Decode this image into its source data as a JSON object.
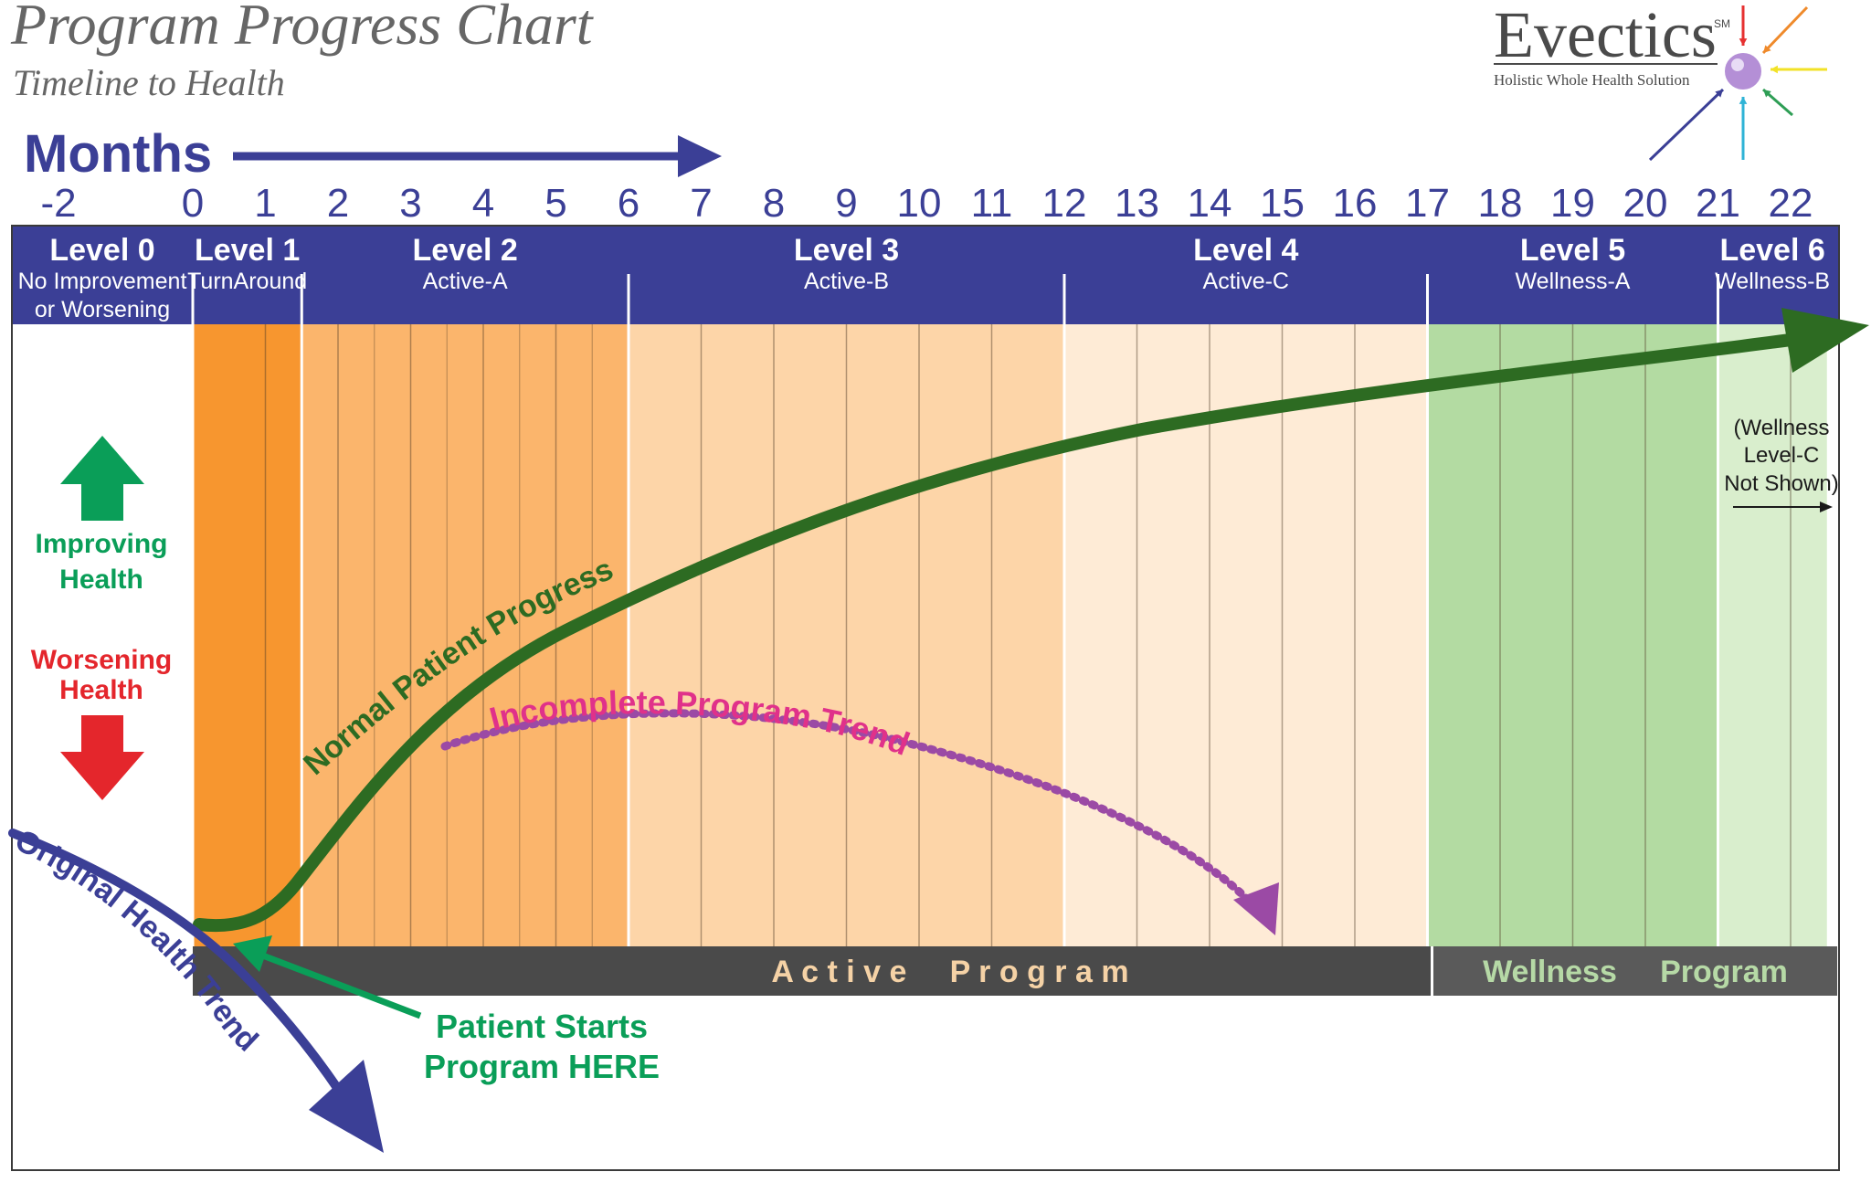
{
  "title": "Program Progress Chart",
  "subtitle": "Timeline to Health",
  "logo": {
    "name": "Evectics",
    "mark": "SM",
    "tagline": "Holistic Whole Health Solution",
    "arrow_colors": [
      "#e63131",
      "#ef8a2b",
      "#f2e227",
      "#2e9e55",
      "#2fb3d6",
      "#3b3f96"
    ]
  },
  "months_label": "Months",
  "month_ticks": [
    "-2",
    "0",
    "1",
    "2",
    "3",
    "4",
    "5",
    "6",
    "7",
    "8",
    "9",
    "10",
    "11",
    "12",
    "13",
    "14",
    "15",
    "16",
    "17",
    "18",
    "19",
    "20",
    "21",
    "22"
  ],
  "levels": [
    {
      "name": "Level 0",
      "sub": [
        "No Improvement",
        "or Worsening"
      ],
      "start": -2.5,
      "end": 0,
      "color": "#ffffff"
    },
    {
      "name": "Level 1",
      "sub": [
        "TurnAround"
      ],
      "start": 0,
      "end": 1.5,
      "color": "#f7962f"
    },
    {
      "name": "Level 2",
      "sub": [
        "Active-A"
      ],
      "start": 1.5,
      "end": 6,
      "color": "#fbb56c"
    },
    {
      "name": "Level 3",
      "sub": [
        "Active-B"
      ],
      "start": 6,
      "end": 12,
      "color": "#fdd5a8"
    },
    {
      "name": "Level 4",
      "sub": [
        "Active-C"
      ],
      "start": 12,
      "end": 17,
      "color": "#feebd6"
    },
    {
      "name": "Level 5",
      "sub": [
        "Wellness-A"
      ],
      "start": 17,
      "end": 21,
      "color": "#b3dba2"
    },
    {
      "name": "Level 6",
      "sub": [
        "Wellness-B"
      ],
      "start": 21,
      "end": 22.5,
      "color": "#d9eecd"
    }
  ],
  "bottom_bars": {
    "active": "A c t i v e     P r o g r a m",
    "wellness": "Wellness     Program"
  },
  "legend": {
    "improving": [
      "Improving",
      "Health"
    ],
    "worsening": [
      "Worsening",
      "Health"
    ],
    "improving_color": "#0a9e58",
    "worsening_color": "#e4262c"
  },
  "note": [
    "(Wellness",
    "Level-C",
    "Not Shown)"
  ],
  "curves": {
    "normal": "Normal Patient Progress",
    "incomplete": "Incomplete Program Trend",
    "original": "Original Health Trend"
  },
  "start_label": [
    "Patient Starts",
    "Program HERE"
  ],
  "colors": {
    "navy": "#3b3f96",
    "dark_green": "#2d6b22",
    "magenta": "#e0318a",
    "purple_dots": "#9b4aa5",
    "start_green": "#0a9e58",
    "bar_dark": "#4a4a4a",
    "wellness_text": "#b6d9a6",
    "active_text": "#f5d2a6"
  }
}
